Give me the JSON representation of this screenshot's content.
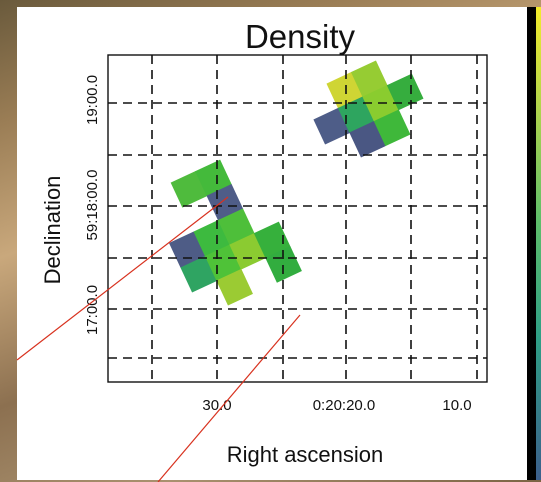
{
  "chart_data": {
    "type": "heatmap",
    "title": "Density",
    "xlabel": "Right ascension",
    "ylabel": "Declination",
    "x_ticks": [
      "30.0",
      "0:20:20.0",
      "10.0"
    ],
    "y_ticks": [
      "19:00.0",
      "59:18:00.0",
      "17:00.0"
    ],
    "grid": true,
    "colorbar": {
      "low_color": "#3c5f8c",
      "high_color": "#f4ec2b"
    },
    "regions": [
      {
        "name": "",
        "cells": [
          {
            "color": "#cfd534"
          },
          {
            "color": "#96cc33"
          },
          {
            "color": "#4e5d88"
          },
          {
            "color": "#2ea55f"
          },
          {
            "color": "#8acc2f"
          },
          {
            "color": "#36ad3e"
          },
          {
            "color": "#4a5783"
          },
          {
            "color": "#3fb83a"
          }
        ]
      },
      {
        "name": "",
        "cells": [
          {
            "color": "#4fbb3d"
          },
          {
            "color": "#44ba3b"
          },
          {
            "color": "#4f5d88"
          },
          {
            "color": "#4e5c86"
          },
          {
            "color": "#3dba3f"
          },
          {
            "color": "#4ebf3a"
          },
          {
            "color": "#2fa462"
          },
          {
            "color": "#4fc238"
          },
          {
            "color": "#8bcb31"
          },
          {
            "color": "#36b03c"
          },
          {
            "color": "#9bcb33"
          },
          {
            "color": "#32ad3f"
          }
        ]
      }
    ]
  }
}
